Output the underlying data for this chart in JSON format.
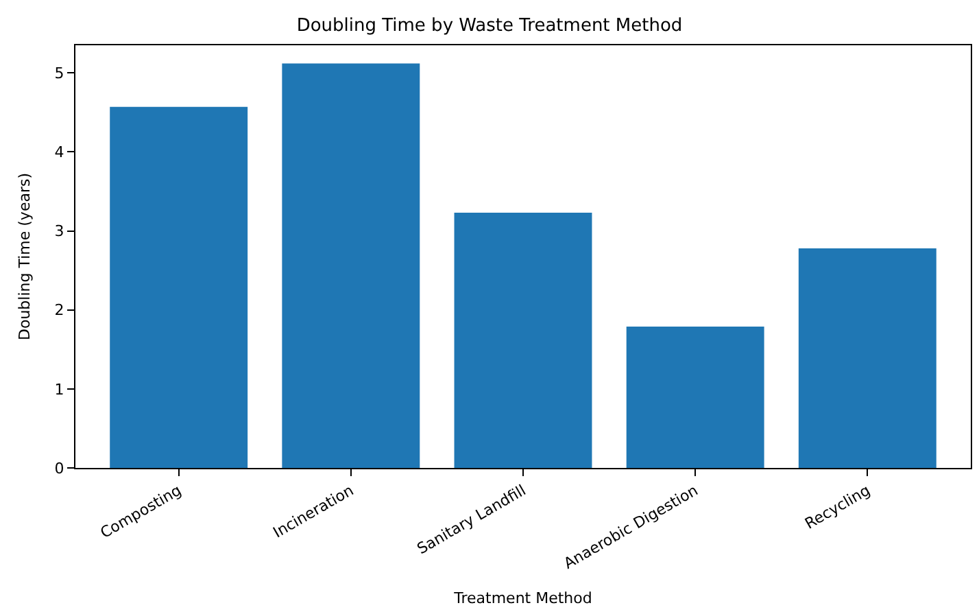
{
  "chart_data": {
    "type": "bar",
    "title": "Doubling Time by Waste Treatment Method",
    "xlabel": "Treatment Method",
    "ylabel": "Doubling Time (years)",
    "categories": [
      "Composting",
      "Incineration",
      "Sanitary Landfill",
      "Anaerobic Digestion",
      "Recycling"
    ],
    "values": [
      4.57,
      5.12,
      3.23,
      1.79,
      2.78
    ],
    "color": "#1f77b4",
    "ylim": [
      0,
      5.35
    ],
    "yticks": [
      0,
      1,
      2,
      3,
      4,
      5
    ]
  }
}
